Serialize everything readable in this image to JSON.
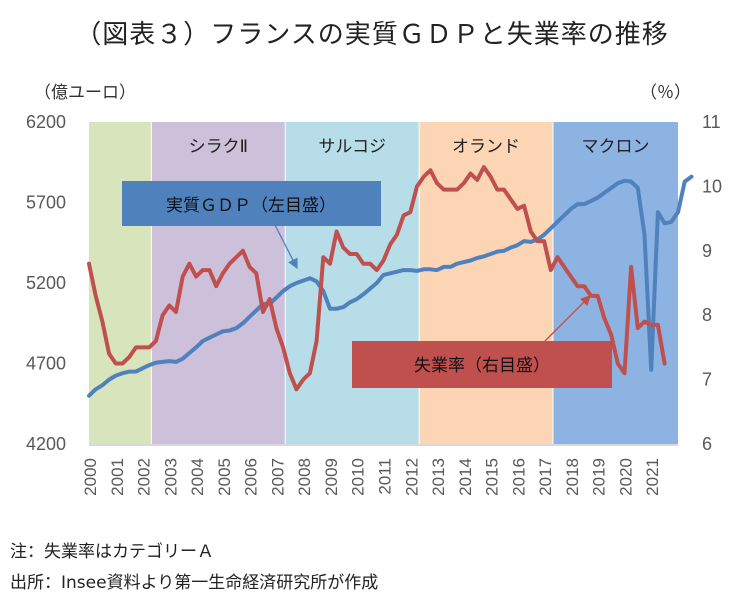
{
  "title": "（図表３）フランスの実質ＧＤＰと失業率の推移",
  "notes": {
    "note": "注：失業率はカテゴリーＡ",
    "source": "出所：Insee資料より第一生命経済研究所が作成"
  },
  "chart_data": {
    "type": "line",
    "title": "（図表３）フランスの実質ＧＤＰと失業率の推移",
    "left_axis": {
      "label": "（億ユーロ）",
      "ylim": [
        4200,
        6200
      ],
      "ticks": [
        4200,
        4700,
        5200,
        5700,
        6200
      ]
    },
    "right_axis": {
      "label": "（％）",
      "ylim": [
        6,
        11
      ],
      "ticks": [
        6,
        7,
        8,
        9,
        10,
        11
      ]
    },
    "x_range": [
      2000,
      2022
    ],
    "xticks": [
      "2000",
      "2001",
      "2002",
      "2003",
      "2004",
      "2005",
      "2006",
      "2007",
      "2008",
      "2009",
      "2010",
      "2011",
      "2012",
      "2013",
      "2014",
      "2015",
      "2016",
      "2017",
      "2018",
      "2019",
      "2020",
      "2021"
    ],
    "frequency": "quarterly",
    "eras": [
      {
        "name": "",
        "start": 2000.0,
        "end": 2002.33,
        "color": "#d8e4bc"
      },
      {
        "name": "シラクⅡ",
        "start": 2002.33,
        "end": 2007.33,
        "color": "#ccc0da"
      },
      {
        "name": "サルコジ",
        "start": 2007.33,
        "end": 2012.33,
        "color": "#b7dde8"
      },
      {
        "name": "オランド",
        "start": 2012.33,
        "end": 2017.33,
        "color": "#fcd5b4"
      },
      {
        "name": "マクロン",
        "start": 2017.33,
        "end": 2022.0,
        "color": "#8db3e2"
      }
    ],
    "series": [
      {
        "name": "実質ＧＤＰ（左目盛）",
        "axis": "left",
        "color": "#4f81bd",
        "start": 2000.0,
        "step": 0.25,
        "values": [
          4500,
          4540,
          4565,
          4600,
          4625,
          4640,
          4650,
          4650,
          4670,
          4690,
          4705,
          4710,
          4715,
          4710,
          4730,
          4765,
          4800,
          4840,
          4860,
          4880,
          4900,
          4905,
          4920,
          4950,
          4990,
          5030,
          5070,
          5070,
          5110,
          5150,
          5180,
          5200,
          5215,
          5230,
          5210,
          5150,
          5040,
          5040,
          5050,
          5080,
          5100,
          5130,
          5165,
          5200,
          5250,
          5260,
          5270,
          5280,
          5280,
          5275,
          5285,
          5285,
          5280,
          5300,
          5300,
          5320,
          5330,
          5340,
          5355,
          5365,
          5380,
          5395,
          5400,
          5420,
          5435,
          5460,
          5455,
          5470,
          5500,
          5540,
          5580,
          5620,
          5660,
          5690,
          5690,
          5710,
          5730,
          5760,
          5790,
          5820,
          5835,
          5830,
          5790,
          5500,
          4660,
          5640,
          5570,
          5580,
          5640,
          5830,
          5860
        ]
      },
      {
        "name": "失業率（右目盛）",
        "axis": "right",
        "color": "#c0504d",
        "start": 2000.0,
        "step": 0.25,
        "values": [
          8.8,
          8.3,
          7.9,
          7.4,
          7.25,
          7.25,
          7.35,
          7.5,
          7.5,
          7.5,
          7.6,
          8.0,
          8.15,
          8.05,
          8.6,
          8.8,
          8.6,
          8.7,
          8.7,
          8.45,
          8.65,
          8.8,
          8.9,
          9.0,
          8.75,
          8.65,
          8.05,
          8.25,
          7.8,
          7.5,
          7.1,
          6.85,
          7.0,
          7.1,
          7.6,
          8.9,
          8.8,
          9.3,
          9.05,
          8.95,
          8.95,
          8.8,
          8.8,
          8.7,
          8.85,
          9.1,
          9.25,
          9.55,
          9.6,
          10.0,
          10.15,
          10.25,
          10.05,
          9.95,
          9.95,
          9.95,
          10.05,
          10.2,
          10.1,
          10.3,
          10.15,
          9.95,
          9.95,
          9.8,
          9.65,
          9.7,
          9.3,
          9.15,
          9.15,
          8.7,
          8.9,
          8.75,
          8.6,
          8.45,
          8.45,
          8.3,
          8.3,
          7.95,
          7.7,
          7.25,
          7.1,
          8.75,
          7.8,
          7.9,
          7.85,
          7.85,
          7.25
        ]
      }
    ],
    "annotations": [
      {
        "text": "実質ＧＤＰ（左目盛）",
        "points_to": "実質ＧＤＰ",
        "color": "#4f81bd"
      },
      {
        "text": "失業率（右目盛）",
        "points_to": "失業率",
        "color": "#c0504d"
      }
    ],
    "grid": false,
    "legend": "callouts"
  }
}
